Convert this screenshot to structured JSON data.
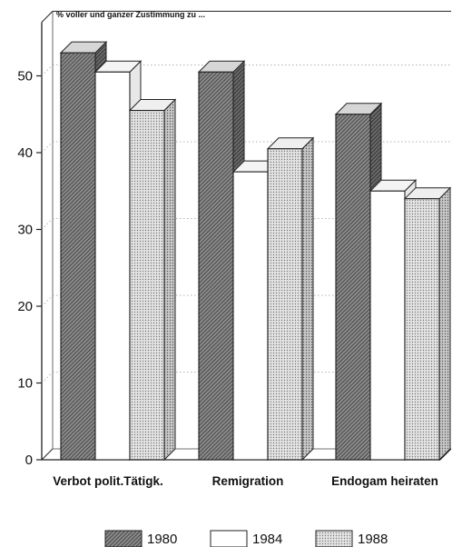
{
  "chart_data": {
    "type": "bar",
    "title": "% voller und ganzer Zustimmung zu ...",
    "categories": [
      "Verbot polit.Tätigk.",
      "Remigration",
      "Endogam heiraten"
    ],
    "series": [
      {
        "name": "1980",
        "values": [
          53,
          50.5,
          45
        ],
        "pattern": "hatch"
      },
      {
        "name": "1984",
        "values": [
          50.5,
          37.5,
          35
        ],
        "pattern": "white"
      },
      {
        "name": "1988",
        "values": [
          45.5,
          40.5,
          34
        ],
        "pattern": "dots"
      }
    ],
    "yticks": [
      "0",
      "10",
      "20",
      "30",
      "40",
      "50"
    ],
    "ylim": [
      0,
      57
    ],
    "grid": "dotted",
    "legend_position": "bottom",
    "style": "3d"
  }
}
